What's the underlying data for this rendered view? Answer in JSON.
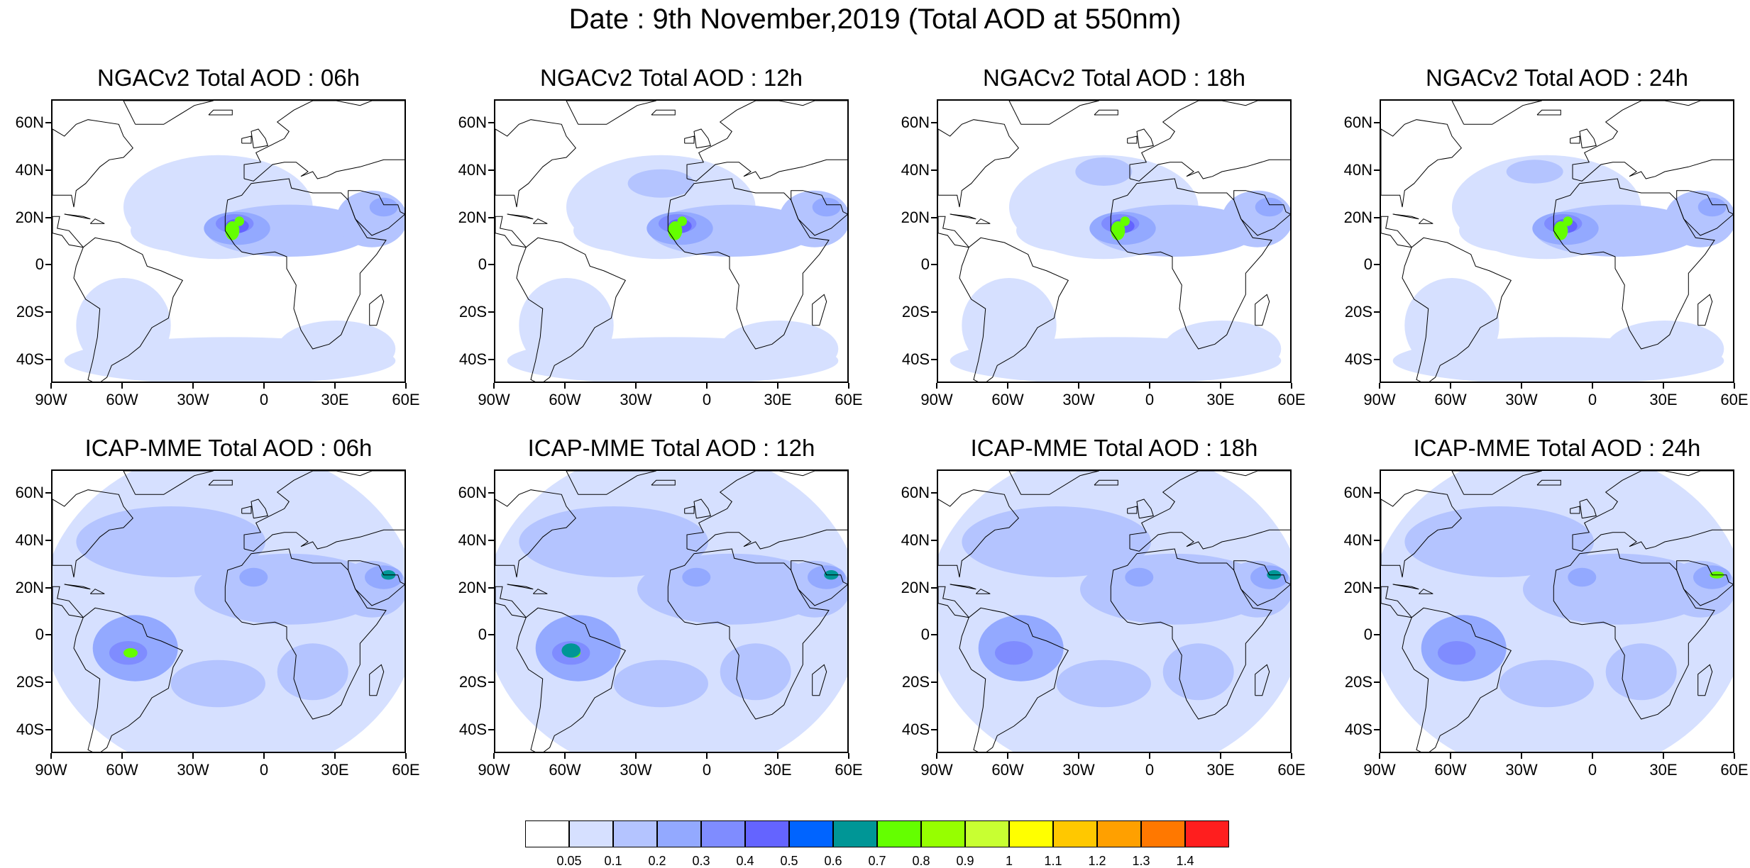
{
  "figure": {
    "title": "Date : 9th November,2019 (Total AOD at 550nm)"
  },
  "axes": {
    "lat_labels": [
      "60N",
      "40N",
      "20N",
      "0",
      "20S",
      "40S"
    ],
    "lat_values": [
      60,
      40,
      20,
      0,
      -20,
      -40
    ],
    "lon_labels": [
      "90W",
      "60W",
      "30W",
      "0",
      "30E",
      "60E"
    ],
    "lon_values": [
      -90,
      -60,
      -30,
      0,
      30,
      60
    ],
    "lat_range": [
      -50,
      70
    ],
    "lon_range": [
      -90,
      60
    ]
  },
  "panels": [
    {
      "title": "NGACv2 Total AOD : 06h",
      "model": "NGACv2",
      "lead": "06h"
    },
    {
      "title": "NGACv2 Total AOD : 12h",
      "model": "NGACv2",
      "lead": "12h"
    },
    {
      "title": "NGACv2 Total AOD : 18h",
      "model": "NGACv2",
      "lead": "18h"
    },
    {
      "title": "NGACv2 Total AOD : 24h",
      "model": "NGACv2",
      "lead": "24h"
    },
    {
      "title": "ICAP-MME Total AOD : 06h",
      "model": "ICAP-MME",
      "lead": "06h"
    },
    {
      "title": "ICAP-MME Total AOD : 12h",
      "model": "ICAP-MME",
      "lead": "12h"
    },
    {
      "title": "ICAP-MME Total AOD : 18h",
      "model": "ICAP-MME",
      "lead": "18h"
    },
    {
      "title": "ICAP-MME Total AOD : 24h",
      "model": "ICAP-MME",
      "lead": "24h"
    }
  ],
  "colorbar": {
    "labels": [
      "0.05",
      "0.1",
      "0.2",
      "0.3",
      "0.4",
      "0.5",
      "0.6",
      "0.7",
      "0.8",
      "0.9",
      "1",
      "1.1",
      "1.2",
      "1.3",
      "1.4"
    ],
    "colors": [
      "#ffffff",
      "#d6e0ff",
      "#b4c4ff",
      "#93a9ff",
      "#7f8cff",
      "#6464ff",
      "#0064ff",
      "#009696",
      "#64ff00",
      "#96ff00",
      "#c8ff32",
      "#ffff00",
      "#ffc800",
      "#ffa000",
      "#ff7800",
      "#ff1e1e"
    ]
  }
}
